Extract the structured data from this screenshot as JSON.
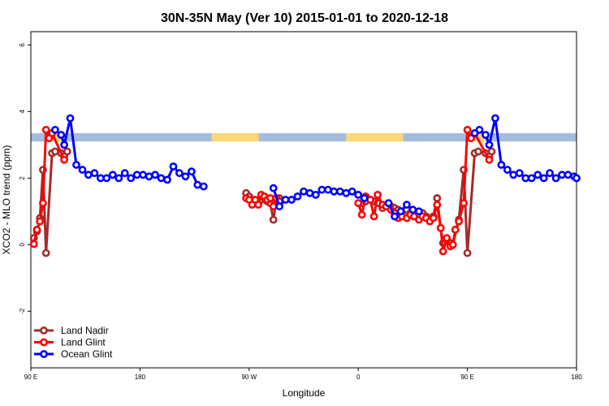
{
  "chart_data": {
    "type": "line",
    "title": "30N-35N May (Ver 10)   2015-01-01 to 2020-12-18",
    "xlabel": "Longitude",
    "ylabel": "XCO2 - MLO trend (ppm)",
    "x_unit": "degrees longitude, continuous from 90E eastward (90 = 90E, 180 = dateline, 270 = 90W, 360 = 0, 450 = 90E again, 540 = 180)",
    "xlim": [
      90,
      540
    ],
    "ylim": [
      -3.7,
      6.4
    ],
    "x_ticks": [
      {
        "value": 90,
        "label": "90 E"
      },
      {
        "value": 180,
        "label": "180"
      },
      {
        "value": 270,
        "label": "90 W"
      },
      {
        "value": 360,
        "label": "0"
      },
      {
        "value": 450,
        "label": "90 E"
      },
      {
        "value": 540,
        "label": "180"
      }
    ],
    "y_ticks": [
      {
        "value": -2,
        "label": "-2"
      },
      {
        "value": 0,
        "label": "0"
      },
      {
        "value": 2,
        "label": "2"
      },
      {
        "value": 4,
        "label": "4"
      },
      {
        "value": 6,
        "label": "6"
      }
    ],
    "grid": false,
    "legend_position": "bottom-left",
    "surface_band": {
      "y_range": [
        3.1,
        3.35
      ],
      "ocean_color": "#a4bddf",
      "land_color": "#fcd777",
      "land_segments": [
        [
          103,
          116
        ],
        [
          239,
          278
        ],
        [
          350,
          397
        ],
        [
          453,
          466
        ]
      ]
    },
    "series": [
      {
        "name": "Land Nadir",
        "color": "#a52a2a",
        "segments": [
          [
            [
              92.5,
              0.2
            ],
            [
              95,
              0.4
            ],
            [
              97.5,
              0.8
            ],
            [
              100,
              2.25
            ],
            [
              102.5,
              -0.25
            ],
            [
              107.5,
              2.75
            ],
            [
              110,
              2.8
            ],
            [
              115,
              2.75
            ],
            [
              117.5,
              2.65
            ],
            [
              120,
              2.8
            ]
          ],
          [
            [
              267.5,
              1.55
            ],
            [
              270,
              1.45
            ],
            [
              272.5,
              1.35
            ],
            [
              275,
              1.3
            ],
            [
              277.5,
              1.25
            ],
            [
              280,
              1.35
            ],
            [
              282.5,
              1.4
            ],
            [
              285,
              1.3
            ],
            [
              287.5,
              1.25
            ],
            [
              290,
              0.75
            ],
            [
              292.5,
              1.35
            ],
            [
              295,
              1.4
            ]
          ],
          [
            [
              363,
              1.25
            ],
            [
              366,
              1.3
            ],
            [
              370,
              1.35
            ],
            [
              373,
              1.3
            ],
            [
              376,
              1.25
            ],
            [
              380,
              1.1
            ],
            [
              383,
              1.15
            ],
            [
              387,
              1.15
            ],
            [
              390,
              1.1
            ],
            [
              393,
              1.05
            ],
            [
              396,
              1.0
            ],
            [
              400,
              1.05
            ],
            [
              403,
              0.95
            ],
            [
              406,
              0.85
            ],
            [
              410,
              0.9
            ],
            [
              413,
              0.95
            ],
            [
              416,
              0.85
            ],
            [
              419,
              0.75
            ],
            [
              422,
              0.85
            ],
            [
              425,
              1.4
            ],
            [
              428,
              0.5
            ],
            [
              430,
              0.05
            ],
            [
              433,
              0.15
            ],
            [
              436,
              0.05
            ],
            [
              438,
              0.0
            ],
            [
              443,
              0.75
            ],
            [
              447,
              2.25
            ],
            [
              450,
              -0.25
            ],
            [
              456,
              2.75
            ],
            [
              459,
              2.8
            ],
            [
              465,
              2.75
            ],
            [
              468,
              2.65
            ],
            [
              470,
              2.8
            ]
          ]
        ]
      },
      {
        "name": "Land Glint",
        "color": "#ff0000",
        "segments": [
          [
            [
              92.5,
              0.02
            ],
            [
              95,
              0.45
            ],
            [
              97.5,
              0.7
            ],
            [
              100,
              1.25
            ],
            [
              102.5,
              3.45
            ],
            [
              105,
              3.2
            ],
            [
              107.5,
              3.35
            ],
            [
              117.5,
              2.55
            ]
          ],
          [
            [
              267.5,
              1.4
            ],
            [
              270,
              1.35
            ],
            [
              272.5,
              1.2
            ],
            [
              275,
              1.35
            ],
            [
              277.5,
              1.2
            ],
            [
              280,
              1.5
            ],
            [
              282.5,
              1.45
            ],
            [
              285,
              1.35
            ],
            [
              287.5,
              1.4
            ],
            [
              290,
              1.15
            ],
            [
              292.5,
              1.4
            ],
            [
              295,
              1.3
            ]
          ],
          [
            [
              360,
              1.25
            ],
            [
              363,
              0.9
            ],
            [
              366,
              1.45
            ],
            [
              370,
              1.35
            ],
            [
              373,
              0.85
            ],
            [
              376,
              1.5
            ],
            [
              380,
              1.2
            ],
            [
              383,
              1.15
            ],
            [
              387,
              1.05
            ],
            [
              390,
              0.95
            ],
            [
              393,
              0.8
            ],
            [
              396,
              0.85
            ],
            [
              400,
              0.8
            ],
            [
              403,
              0.9
            ],
            [
              406,
              0.85
            ],
            [
              410,
              0.75
            ],
            [
              413,
              0.85
            ],
            [
              416,
              0.8
            ],
            [
              419,
              0.7
            ],
            [
              422,
              0.8
            ],
            [
              425,
              1.2
            ],
            [
              428,
              0.5
            ],
            [
              430,
              -0.2
            ],
            [
              433,
              0.2
            ],
            [
              436,
              -0.05
            ],
            [
              438,
              0.0
            ],
            [
              440,
              0.45
            ],
            [
              443,
              0.7
            ],
            [
              447,
              1.25
            ],
            [
              450,
              3.45
            ],
            [
              453,
              3.2
            ],
            [
              456,
              3.35
            ],
            [
              468,
              2.55
            ]
          ]
        ]
      },
      {
        "name": "Ocean Glint",
        "color": "#0000ff",
        "segments": [
          [
            [
              110,
              3.45
            ],
            [
              115,
              3.3
            ],
            [
              117.5,
              3.0
            ],
            [
              122.5,
              3.8
            ],
            [
              127.5,
              2.4
            ],
            [
              132.5,
              2.25
            ],
            [
              137.5,
              2.1
            ],
            [
              142.5,
              2.15
            ],
            [
              147.5,
              2.0
            ],
            [
              152.5,
              2.0
            ],
            [
              157.5,
              2.1
            ],
            [
              162.5,
              2.0
            ],
            [
              167.5,
              2.15
            ],
            [
              172.5,
              2.0
            ],
            [
              177.5,
              2.1
            ],
            [
              182.5,
              2.1
            ],
            [
              187.5,
              2.05
            ],
            [
              192.5,
              2.1
            ],
            [
              197.5,
              2.0
            ],
            [
              202.5,
              1.95
            ],
            [
              207.5,
              2.35
            ],
            [
              212.5,
              2.15
            ],
            [
              217.5,
              2.05
            ],
            [
              222.5,
              2.2
            ],
            [
              227.5,
              1.8
            ],
            [
              232.5,
              1.75
            ]
          ],
          [
            [
              290,
              1.7
            ],
            [
              295,
              1.15
            ],
            [
              300,
              1.35
            ],
            [
              305,
              1.35
            ],
            [
              310,
              1.45
            ],
            [
              315,
              1.6
            ],
            [
              320,
              1.55
            ],
            [
              325,
              1.5
            ],
            [
              330,
              1.65
            ],
            [
              335,
              1.65
            ],
            [
              340,
              1.6
            ],
            [
              345,
              1.6
            ],
            [
              350,
              1.55
            ],
            [
              355,
              1.6
            ],
            [
              360,
              1.5
            ],
            [
              365,
              1.4
            ]
          ],
          [
            [
              385,
              1.25
            ],
            [
              390,
              0.85
            ],
            [
              395,
              1.0
            ],
            [
              400,
              1.2
            ],
            [
              405,
              1.05
            ],
            [
              410,
              1.0
            ]
          ],
          [
            [
              456,
              3.35
            ],
            [
              460,
              3.45
            ],
            [
              465,
              3.3
            ],
            [
              468,
              3.0
            ],
            [
              473,
              3.8
            ],
            [
              478,
              2.4
            ],
            [
              483,
              2.25
            ],
            [
              488,
              2.1
            ],
            [
              493,
              2.15
            ],
            [
              498,
              2.0
            ],
            [
              503,
              2.0
            ],
            [
              508,
              2.1
            ],
            [
              513,
              2.0
            ],
            [
              518,
              2.15
            ],
            [
              523,
              2.0
            ],
            [
              528,
              2.1
            ],
            [
              533,
              2.1
            ],
            [
              538,
              2.05
            ],
            [
              540,
              2.0
            ]
          ]
        ]
      }
    ]
  }
}
